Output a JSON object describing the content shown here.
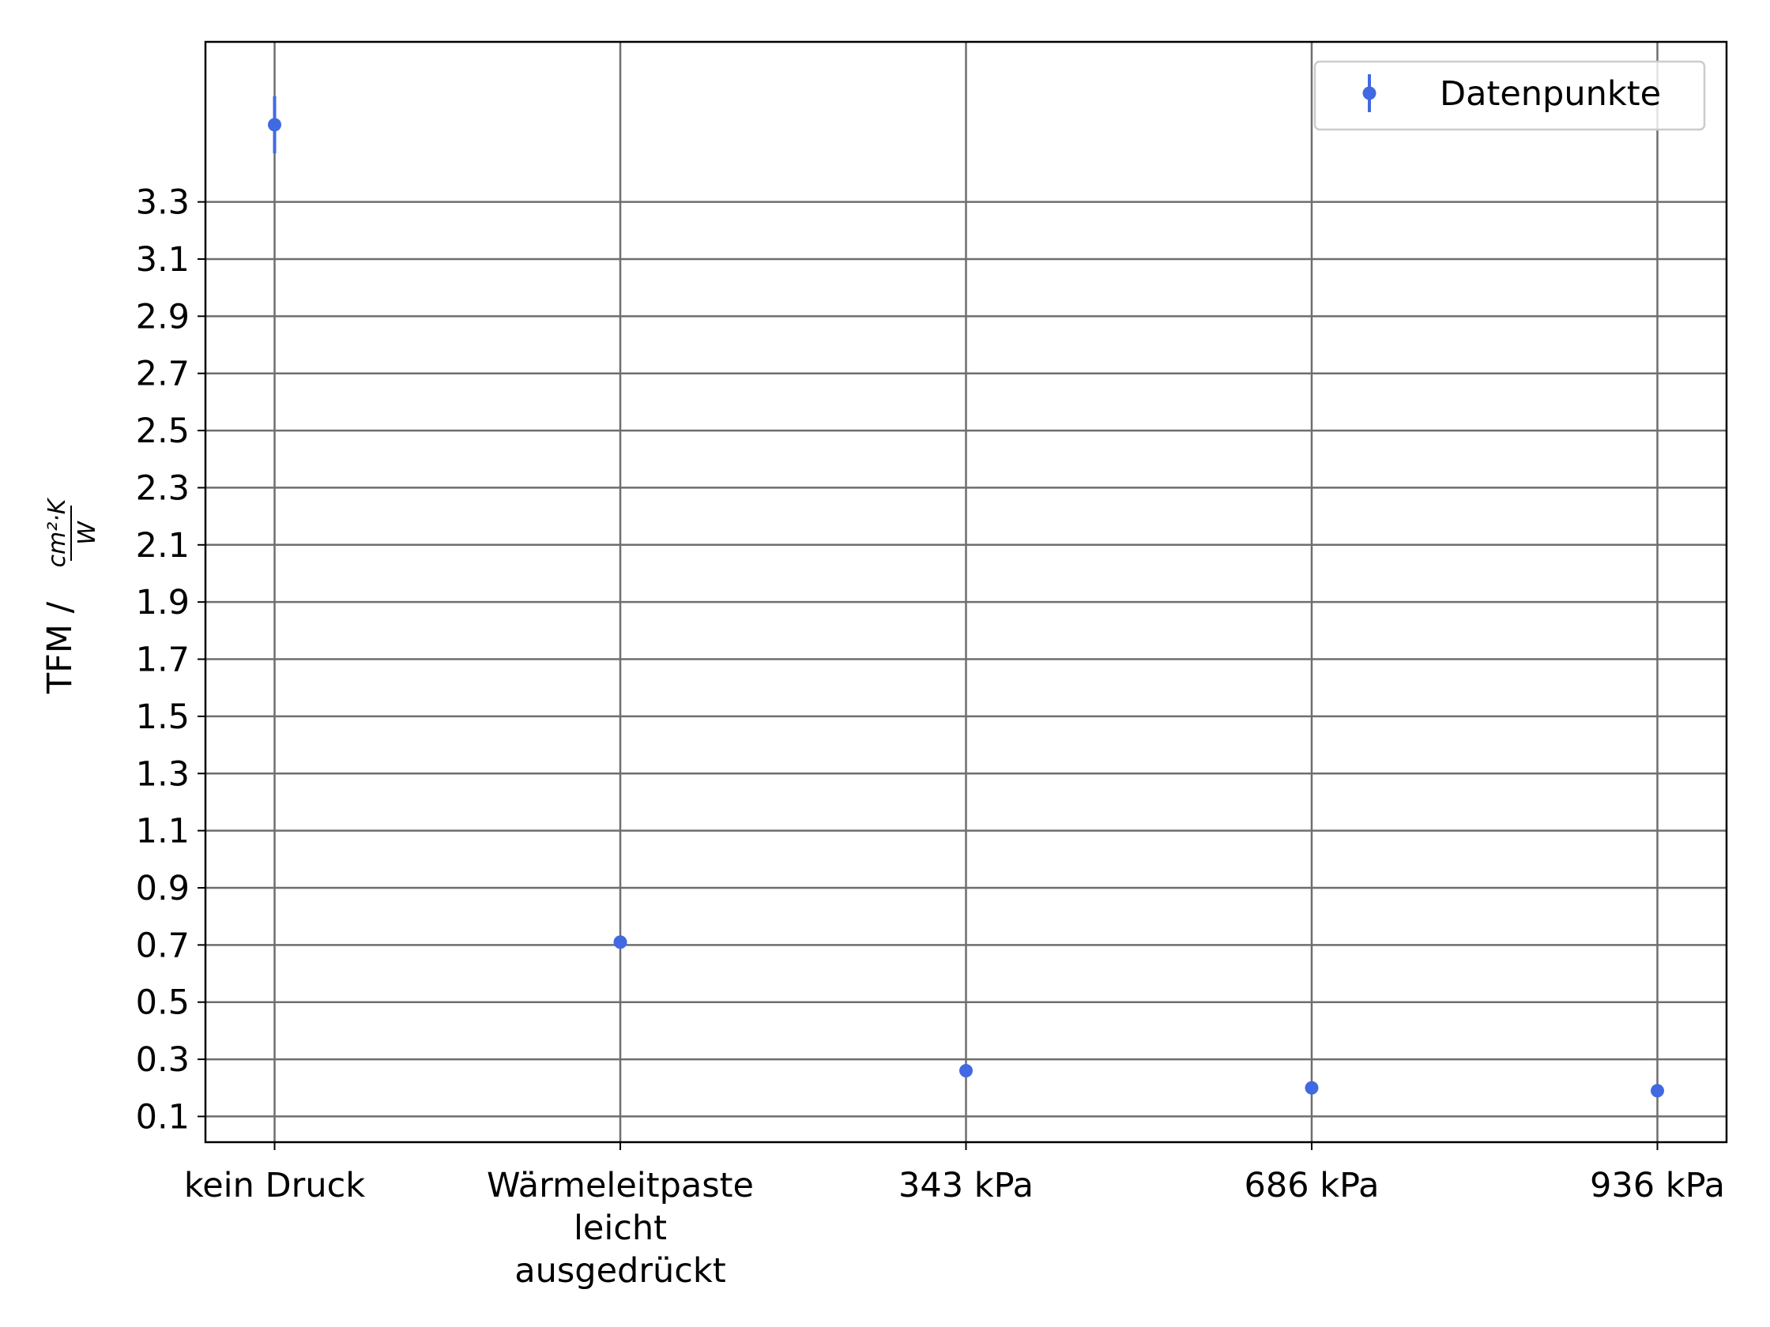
{
  "chart_data": {
    "type": "scatter",
    "title": "",
    "xlabel": "",
    "ylabel": {
      "prefix": "TFM /",
      "numerator": "cm²·K",
      "denominator": "W"
    },
    "categories": [
      [
        "kein Druck"
      ],
      [
        "Wärmeleitpaste",
        "leicht",
        "ausgedrückt"
      ],
      [
        "343 kPa"
      ],
      [
        "686 kPa"
      ],
      [
        "936 kPa"
      ]
    ],
    "yticks": [
      "0.1",
      "0.3",
      "0.5",
      "0.7",
      "0.9",
      "1.1",
      "1.3",
      "1.5",
      "1.7",
      "1.9",
      "2.1",
      "2.3",
      "2.5",
      "2.7",
      "2.9",
      "3.1",
      "3.3"
    ],
    "ylim": [
      0.01,
      3.86
    ],
    "xlim": [
      -0.2,
      4.2
    ],
    "grid": true,
    "legend_position": "top-right",
    "series": [
      {
        "name": "Datenpunkte",
        "color": "#4169e1",
        "values": [
          3.57,
          0.71,
          0.26,
          0.2,
          0.19
        ],
        "errors": [
          0.1,
          0,
          0,
          0,
          0
        ]
      }
    ]
  }
}
